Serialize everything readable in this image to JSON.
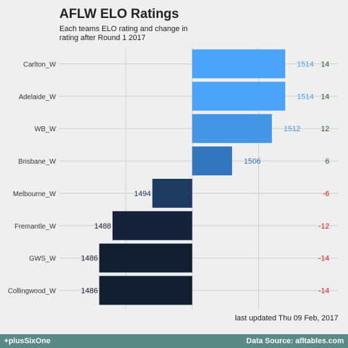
{
  "chart_data": {
    "type": "bar",
    "orientation": "horizontal",
    "title": "AFLW ELO Ratings",
    "subtitle": "Each teams ELO rating and change in rating after Round 1 2017",
    "baseline": 1500,
    "xlim": [
      1480,
      1522
    ],
    "grid": true,
    "categories": [
      "Carlton_W",
      "Adelaide_W",
      "WB_W",
      "Brisbane_W",
      "Melbourne_W",
      "Fremantle_W",
      "GWS_W",
      "Collingwood_W"
    ],
    "values": [
      1514,
      1514,
      1512,
      1506,
      1494,
      1488,
      1486,
      1486
    ],
    "changes": [
      "14",
      "14",
      "12",
      "6",
      "-6",
      "-12",
      "-14",
      "-14"
    ],
    "bar_colors": [
      "#4aa3f7",
      "#4aa3f7",
      "#4495e6",
      "#3276bd",
      "#1e3a60",
      "#15223a",
      "#101e30",
      "#101e30"
    ],
    "label_colors": [
      "#4aa3f7",
      "#4aa3f7",
      "#4495e6",
      "#3276bd",
      "#1e3a60",
      "#15223a",
      "#101e30",
      "#101e30"
    ],
    "positive_change_color": "#1a5e1a",
    "negative_change_color": "#e0201c"
  },
  "updated": "last updated Thu 09 Feb, 2017",
  "footer": {
    "left": "+plusSixOne",
    "right": "Data Source: afltables.com"
  }
}
